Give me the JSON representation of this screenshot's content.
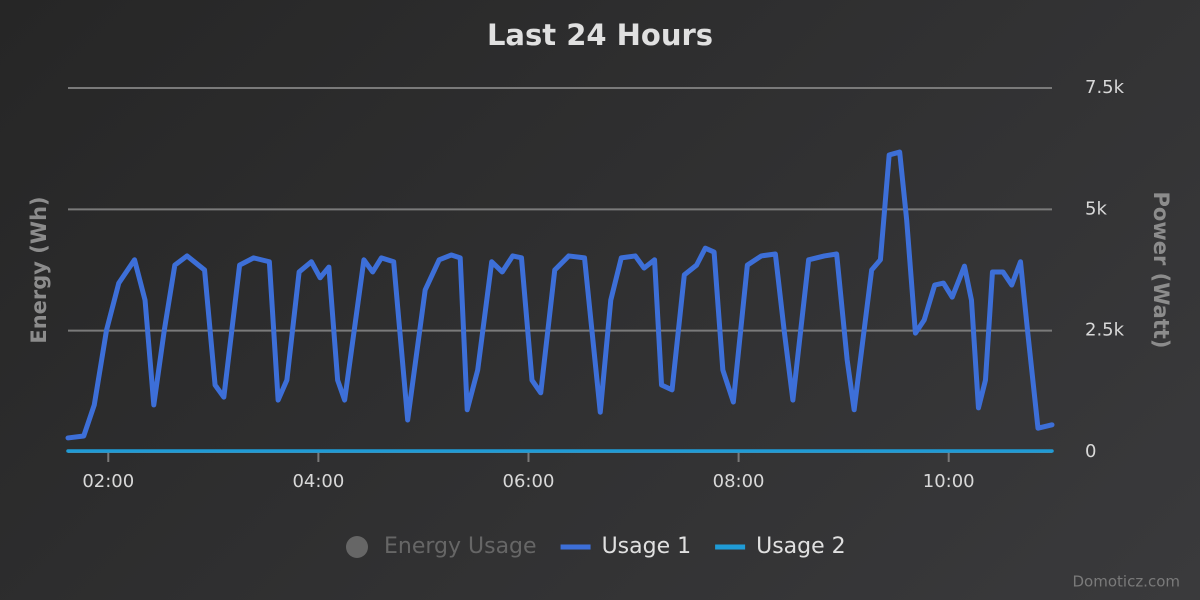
{
  "chart_data": {
    "type": "line",
    "title": "Last 24 Hours",
    "y_label": "Energy (Wh)",
    "y2_label": "Power (Watt)",
    "credit": "Domoticz.com",
    "x": [
      "01:37",
      "01:46",
      "01:52",
      "01:59",
      "02:06",
      "02:15",
      "02:21",
      "02:26",
      "02:32",
      "02:38",
      "02:45",
      "02:55",
      "03:01",
      "03:06",
      "03:15",
      "03:23",
      "03:32",
      "03:37",
      "03:42",
      "03:49",
      "03:56",
      "04:01",
      "04:06",
      "04:11",
      "04:15",
      "04:26",
      "04:31",
      "04:36",
      "04:43",
      "04:51",
      "05:01",
      "05:09",
      "05:16",
      "05:21",
      "05:25",
      "05:31",
      "05:39",
      "05:45",
      "05:51",
      "05:56",
      "06:02",
      "06:07",
      "06:15",
      "06:23",
      "06:32",
      "06:41",
      "06:47",
      "06:53",
      "07:01",
      "07:06",
      "07:12",
      "07:16",
      "07:22",
      "07:29",
      "07:36",
      "07:41",
      "07:46",
      "07:51",
      "07:57",
      "08:05",
      "08:13",
      "08:21",
      "08:26",
      "08:31",
      "08:40",
      "08:49",
      "08:56",
      "09:02",
      "09:06",
      "09:16",
      "09:21",
      "09:26",
      "09:32",
      "09:36",
      "09:41",
      "09:46",
      "09:52",
      "09:57",
      "10:02",
      "10:09",
      "10:13",
      "10:17",
      "10:21",
      "10:25",
      "10:31",
      "10:36",
      "10:41",
      "10:45",
      "10:51",
      "10:59"
    ],
    "xlim": [
      "01:37",
      "10:59"
    ],
    "xticks": [
      "02:00",
      "04:00",
      "06:00",
      "08:00",
      "10:00"
    ],
    "y2lim": [
      0,
      7500
    ],
    "y2ticks": [
      0,
      {
        "value": 2500,
        "label": "2.5k"
      },
      {
        "value": 5000,
        "label": "5k"
      },
      {
        "value": 7500,
        "label": "7.5k"
      }
    ],
    "grid": true,
    "series": [
      {
        "name": "Energy Usage",
        "color": "#666666",
        "visible": false,
        "values": [
          null,
          null,
          null,
          null,
          null,
          null,
          null,
          null,
          null,
          null,
          null,
          null,
          null,
          null,
          null,
          null,
          null,
          null,
          null,
          null,
          null,
          null,
          null,
          null,
          null,
          null,
          null,
          null,
          null,
          null,
          null,
          null,
          null,
          null,
          null,
          null,
          null,
          null,
          null,
          null,
          null,
          null,
          null,
          null,
          null,
          null,
          null,
          null,
          null,
          null,
          null,
          null,
          null,
          null,
          null,
          null,
          null,
          null,
          null,
          null,
          null,
          null,
          null,
          null,
          null,
          null,
          null,
          null,
          null,
          null,
          null,
          null,
          null,
          null,
          null,
          null,
          null,
          null,
          null,
          null,
          null,
          null,
          null,
          null,
          null,
          null,
          null,
          null,
          null,
          null
        ]
      },
      {
        "name": "Usage 1",
        "color": "#3d6fd8",
        "axis": "y2",
        "values": [
          290,
          330,
          970,
          2510,
          3480,
          3960,
          3130,
          970,
          2510,
          3850,
          4040,
          3750,
          1380,
          1130,
          3850,
          4000,
          3920,
          1070,
          1480,
          3710,
          3920,
          3590,
          3810,
          1480,
          1070,
          3960,
          3710,
          4000,
          3920,
          660,
          3340,
          3960,
          4060,
          4000,
          870,
          1690,
          3920,
          3710,
          4040,
          4000,
          1480,
          1220,
          3750,
          4040,
          4000,
          820,
          3130,
          4000,
          4040,
          3790,
          3960,
          1380,
          1280,
          3650,
          3850,
          4200,
          4120,
          1690,
          1030,
          3850,
          4040,
          4080,
          2510,
          1070,
          3960,
          4040,
          4080,
          1900,
          870,
          3750,
          3960,
          6120,
          6180,
          4780,
          2450,
          2720,
          3440,
          3480,
          3190,
          3830,
          3130,
          910,
          1480,
          3710,
          3710,
          3440,
          3920,
          2510,
          490,
          560
        ]
      },
      {
        "name": "Usage 2",
        "color": "#1f9bd6",
        "axis": "y2",
        "values": [
          20,
          20,
          20,
          20,
          20,
          20,
          20,
          20,
          20,
          20,
          20,
          20,
          20,
          20,
          20,
          20,
          20,
          20,
          20,
          20,
          20,
          20,
          20,
          20,
          20,
          20,
          20,
          20,
          20,
          20,
          20,
          20,
          20,
          20,
          20,
          20,
          20,
          20,
          20,
          20,
          20,
          20,
          20,
          20,
          20,
          20,
          20,
          20,
          20,
          20,
          20,
          20,
          20,
          20,
          20,
          20,
          20,
          20,
          20,
          20,
          20,
          20,
          20,
          20,
          20,
          20,
          20,
          20,
          20,
          20,
          20,
          20,
          20,
          20,
          20,
          20,
          20,
          20,
          20,
          20,
          20,
          20,
          20,
          20,
          20,
          20,
          20,
          20,
          20,
          20
        ]
      }
    ]
  }
}
